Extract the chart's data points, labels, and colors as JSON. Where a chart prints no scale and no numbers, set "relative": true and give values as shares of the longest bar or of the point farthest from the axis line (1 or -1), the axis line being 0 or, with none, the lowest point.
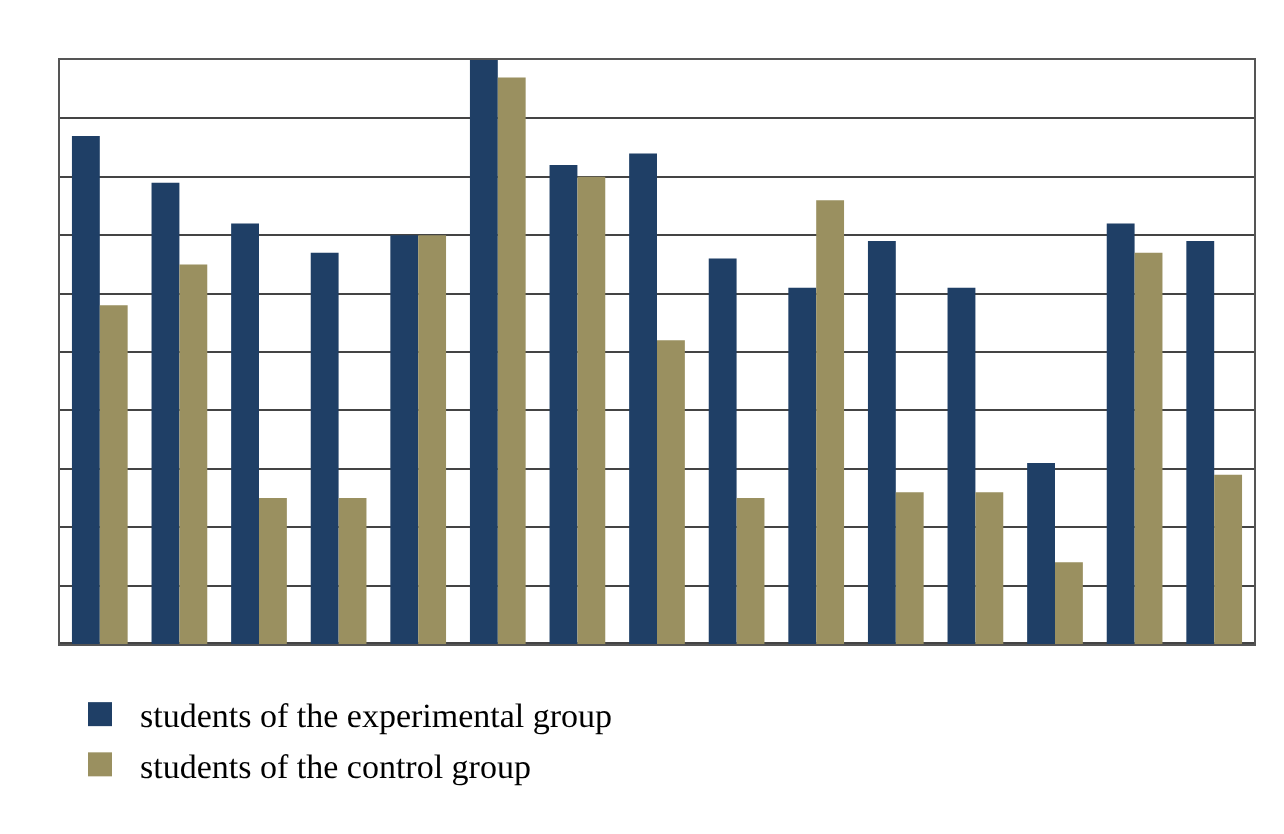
{
  "chart_data": {
    "type": "bar",
    "relative": true,
    "grid": "y",
    "legend": "bottom left",
    "categories": [
      null,
      null,
      null,
      null,
      null,
      null,
      null,
      null,
      null,
      null,
      null,
      null,
      null,
      null,
      null
    ],
    "series": [
      {
        "name": "students of the experimental group",
        "color": "#1f3f66",
        "values": [
          0.87,
          0.79,
          0.72,
          0.67,
          0.7,
          1.0,
          0.82,
          0.84,
          0.66,
          0.61,
          0.69,
          0.61,
          0.31,
          0.72,
          0.69
        ]
      },
      {
        "name": "students of the control group",
        "color": "#9a9060",
        "values": [
          0.58,
          0.65,
          0.25,
          0.25,
          0.7,
          0.97,
          0.8,
          0.52,
          0.25,
          0.76,
          0.26,
          0.26,
          0.14,
          0.67,
          0.29
        ]
      }
    ]
  }
}
